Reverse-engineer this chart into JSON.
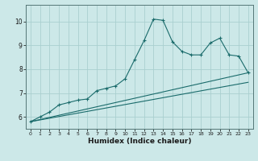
{
  "xlabel": "Humidex (Indice chaleur)",
  "bg_color": "#cce8e8",
  "grid_color": "#aacfcf",
  "line_color": "#1a6b6b",
  "xlim": [
    -0.5,
    23.5
  ],
  "ylim": [
    5.5,
    10.7
  ],
  "yticks": [
    6,
    7,
    8,
    9,
    10
  ],
  "xticks": [
    0,
    1,
    2,
    3,
    4,
    5,
    6,
    7,
    8,
    9,
    10,
    11,
    12,
    13,
    14,
    15,
    16,
    17,
    18,
    19,
    20,
    21,
    22,
    23
  ],
  "series1_x": [
    0,
    1,
    2,
    3,
    4,
    5,
    6,
    7,
    8,
    9,
    10,
    11,
    12,
    13,
    14,
    15,
    16,
    17,
    18,
    19,
    20,
    21,
    22,
    23
  ],
  "series1_y": [
    5.8,
    6.0,
    6.2,
    6.5,
    6.6,
    6.7,
    6.75,
    7.1,
    7.2,
    7.3,
    7.6,
    8.4,
    9.2,
    10.1,
    10.05,
    9.15,
    8.75,
    8.6,
    8.6,
    9.1,
    9.3,
    8.6,
    8.55,
    7.85
  ],
  "series2_x": [
    0,
    23
  ],
  "series2_y": [
    5.8,
    7.85
  ],
  "series3_x": [
    0,
    23
  ],
  "series3_y": [
    5.8,
    7.45
  ]
}
